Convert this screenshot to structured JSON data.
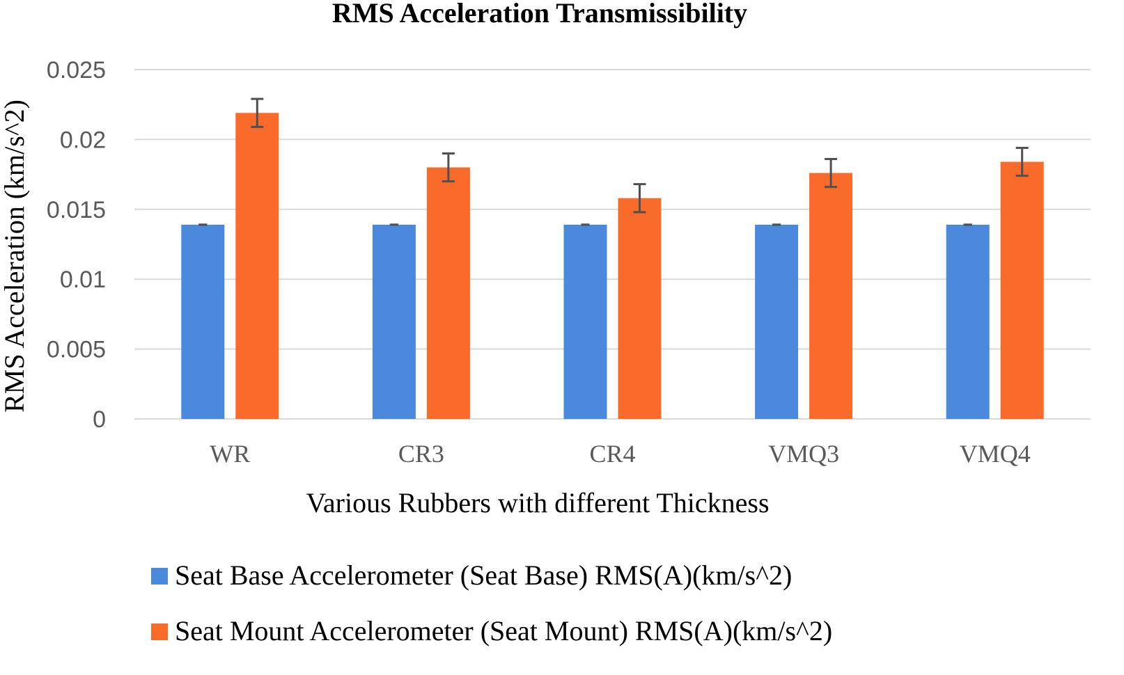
{
  "chart_data": {
    "type": "bar",
    "title": "RMS Acceleration Transmissibility",
    "xlabel": "Various Rubbers  with different Thickness",
    "ylabel": "RMS Acceleration (km/s^2)",
    "categories": [
      "WR",
      "CR3",
      "CR4",
      "VMQ3",
      "VMQ4"
    ],
    "ylim": [
      0,
      0.025
    ],
    "yticks": [
      0,
      0.005,
      0.01,
      0.015,
      0.02,
      0.025
    ],
    "ytick_labels": [
      "0",
      "0.005",
      "0.01",
      "0.015",
      "0.02",
      "0.025"
    ],
    "grid": true,
    "legend_position": "bottom",
    "series": [
      {
        "name": "Seat Base Accelerometer (Seat Base) RMS(A)(km/s^2)",
        "color": "#4a89dc",
        "values": [
          0.0139,
          0.0139,
          0.0139,
          0.0139,
          0.0139
        ],
        "errors": [
          0,
          0,
          0,
          0,
          0
        ]
      },
      {
        "name": "Seat Mount Accelerometer (Seat Mount) RMS(A)(km/s^2)",
        "color": "#f96b2a",
        "values": [
          0.0219,
          0.018,
          0.0158,
          0.0176,
          0.0184
        ],
        "errors": [
          0.001,
          0.001,
          0.001,
          0.001,
          0.001
        ]
      }
    ]
  }
}
